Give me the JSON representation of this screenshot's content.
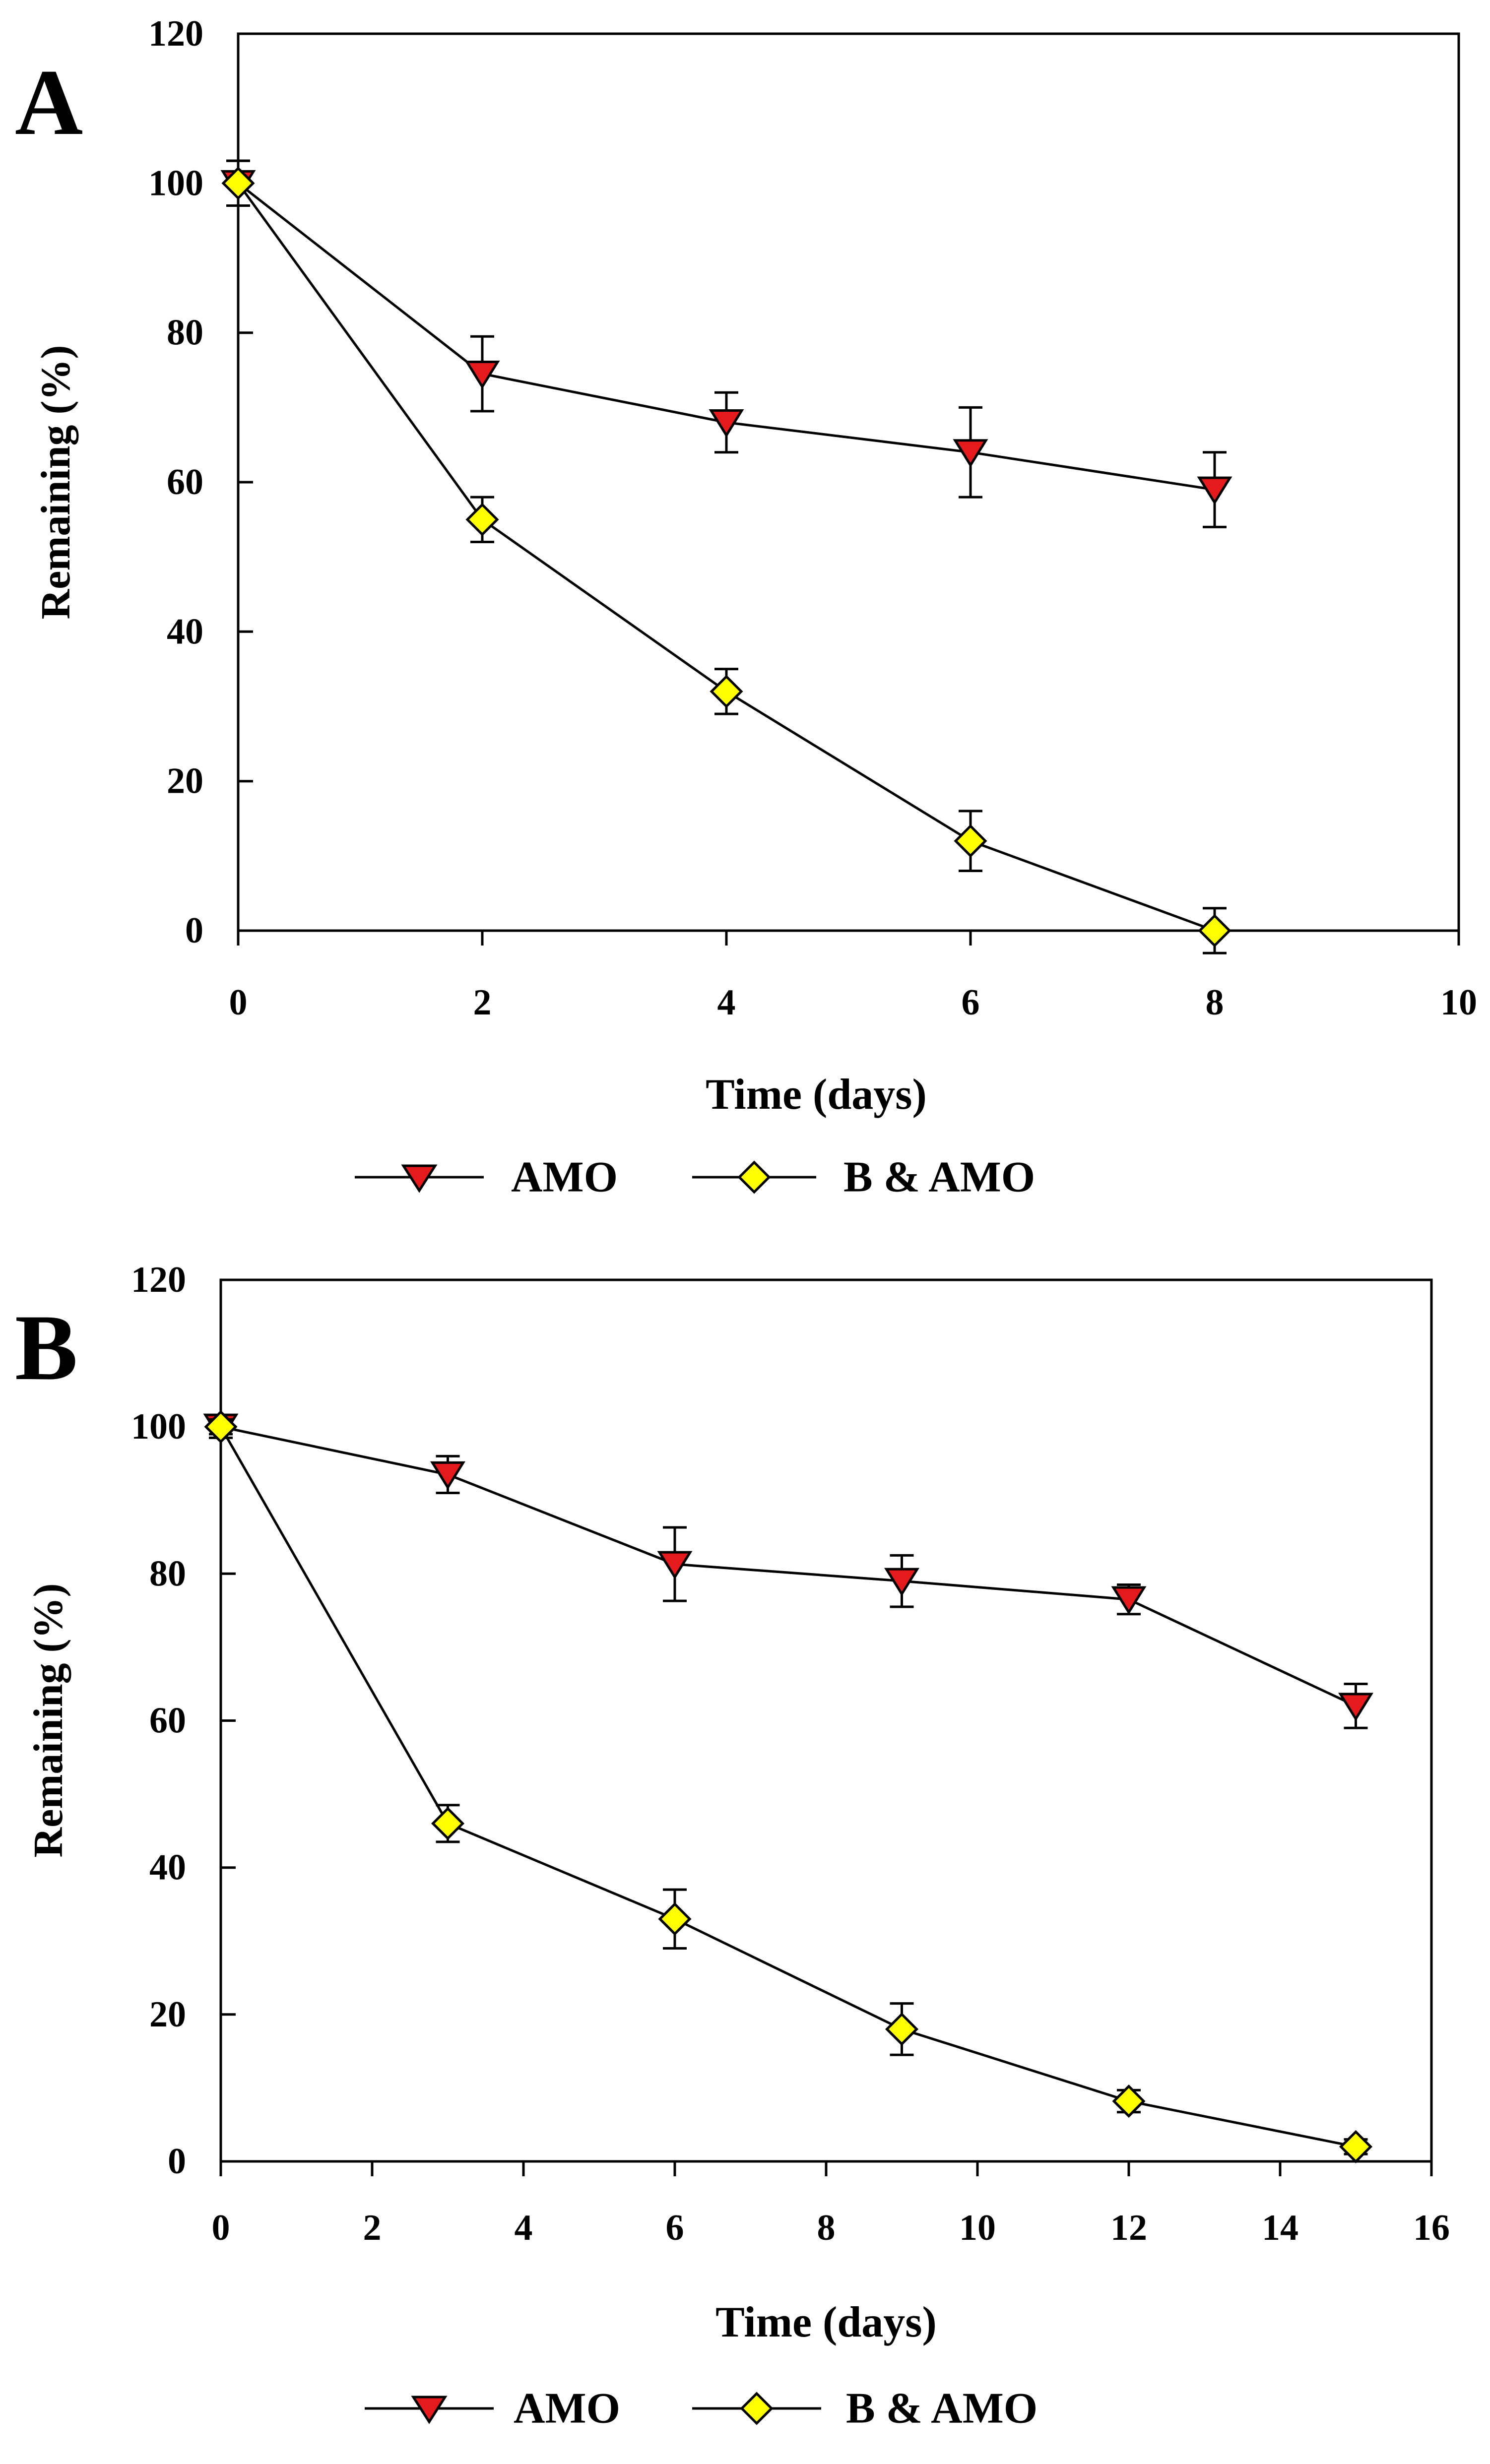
{
  "chart_data": [
    {
      "panel_label": "A",
      "type": "line",
      "xlabel": "Time (days)",
      "ylabel": "Remaining (%)",
      "xlim": [
        0,
        10
      ],
      "ylim": [
        0,
        120
      ],
      "xticks": [
        0,
        2,
        4,
        6,
        8,
        10
      ],
      "yticks": [
        0,
        20,
        40,
        60,
        80,
        100,
        120
      ],
      "grid": false,
      "legend_position": "bottom",
      "series": [
        {
          "name": "AMO",
          "marker": "triangle-down",
          "color": "#e41a1c",
          "x": [
            0,
            2,
            4,
            6,
            8
          ],
          "values": [
            100,
            74.5,
            68,
            64,
            59
          ],
          "errors": [
            3,
            5,
            4,
            6,
            5
          ]
        },
        {
          "name": "B & AMO",
          "marker": "diamond",
          "color": "#ffff00",
          "x": [
            0,
            2,
            4,
            6,
            8
          ],
          "values": [
            100,
            55,
            32,
            12,
            0
          ],
          "errors": [
            3,
            3,
            3,
            4,
            3
          ]
        }
      ]
    },
    {
      "panel_label": "B",
      "type": "line",
      "xlabel": "Time (days)",
      "ylabel": "Remaining (%)",
      "xlim": [
        0,
        16
      ],
      "ylim": [
        0,
        120
      ],
      "xticks": [
        0,
        2,
        4,
        6,
        8,
        10,
        12,
        14,
        16
      ],
      "yticks": [
        0,
        20,
        40,
        60,
        80,
        100,
        120
      ],
      "grid": false,
      "legend_position": "bottom",
      "series": [
        {
          "name": "AMO",
          "marker": "triangle-down",
          "color": "#e41a1c",
          "x": [
            0,
            3,
            6,
            9,
            12,
            15
          ],
          "values": [
            100,
            93.5,
            81.3,
            79,
            76.5,
            62
          ],
          "errors": [
            1.5,
            2.5,
            5,
            3.5,
            2,
            3
          ]
        },
        {
          "name": "B & AMO",
          "marker": "diamond",
          "color": "#ffff00",
          "x": [
            0,
            3,
            6,
            9,
            12,
            15
          ],
          "values": [
            100,
            46,
            33,
            18,
            8.2,
            2
          ],
          "errors": [
            1,
            2.5,
            4,
            3.5,
            1.5,
            1
          ]
        }
      ]
    }
  ]
}
